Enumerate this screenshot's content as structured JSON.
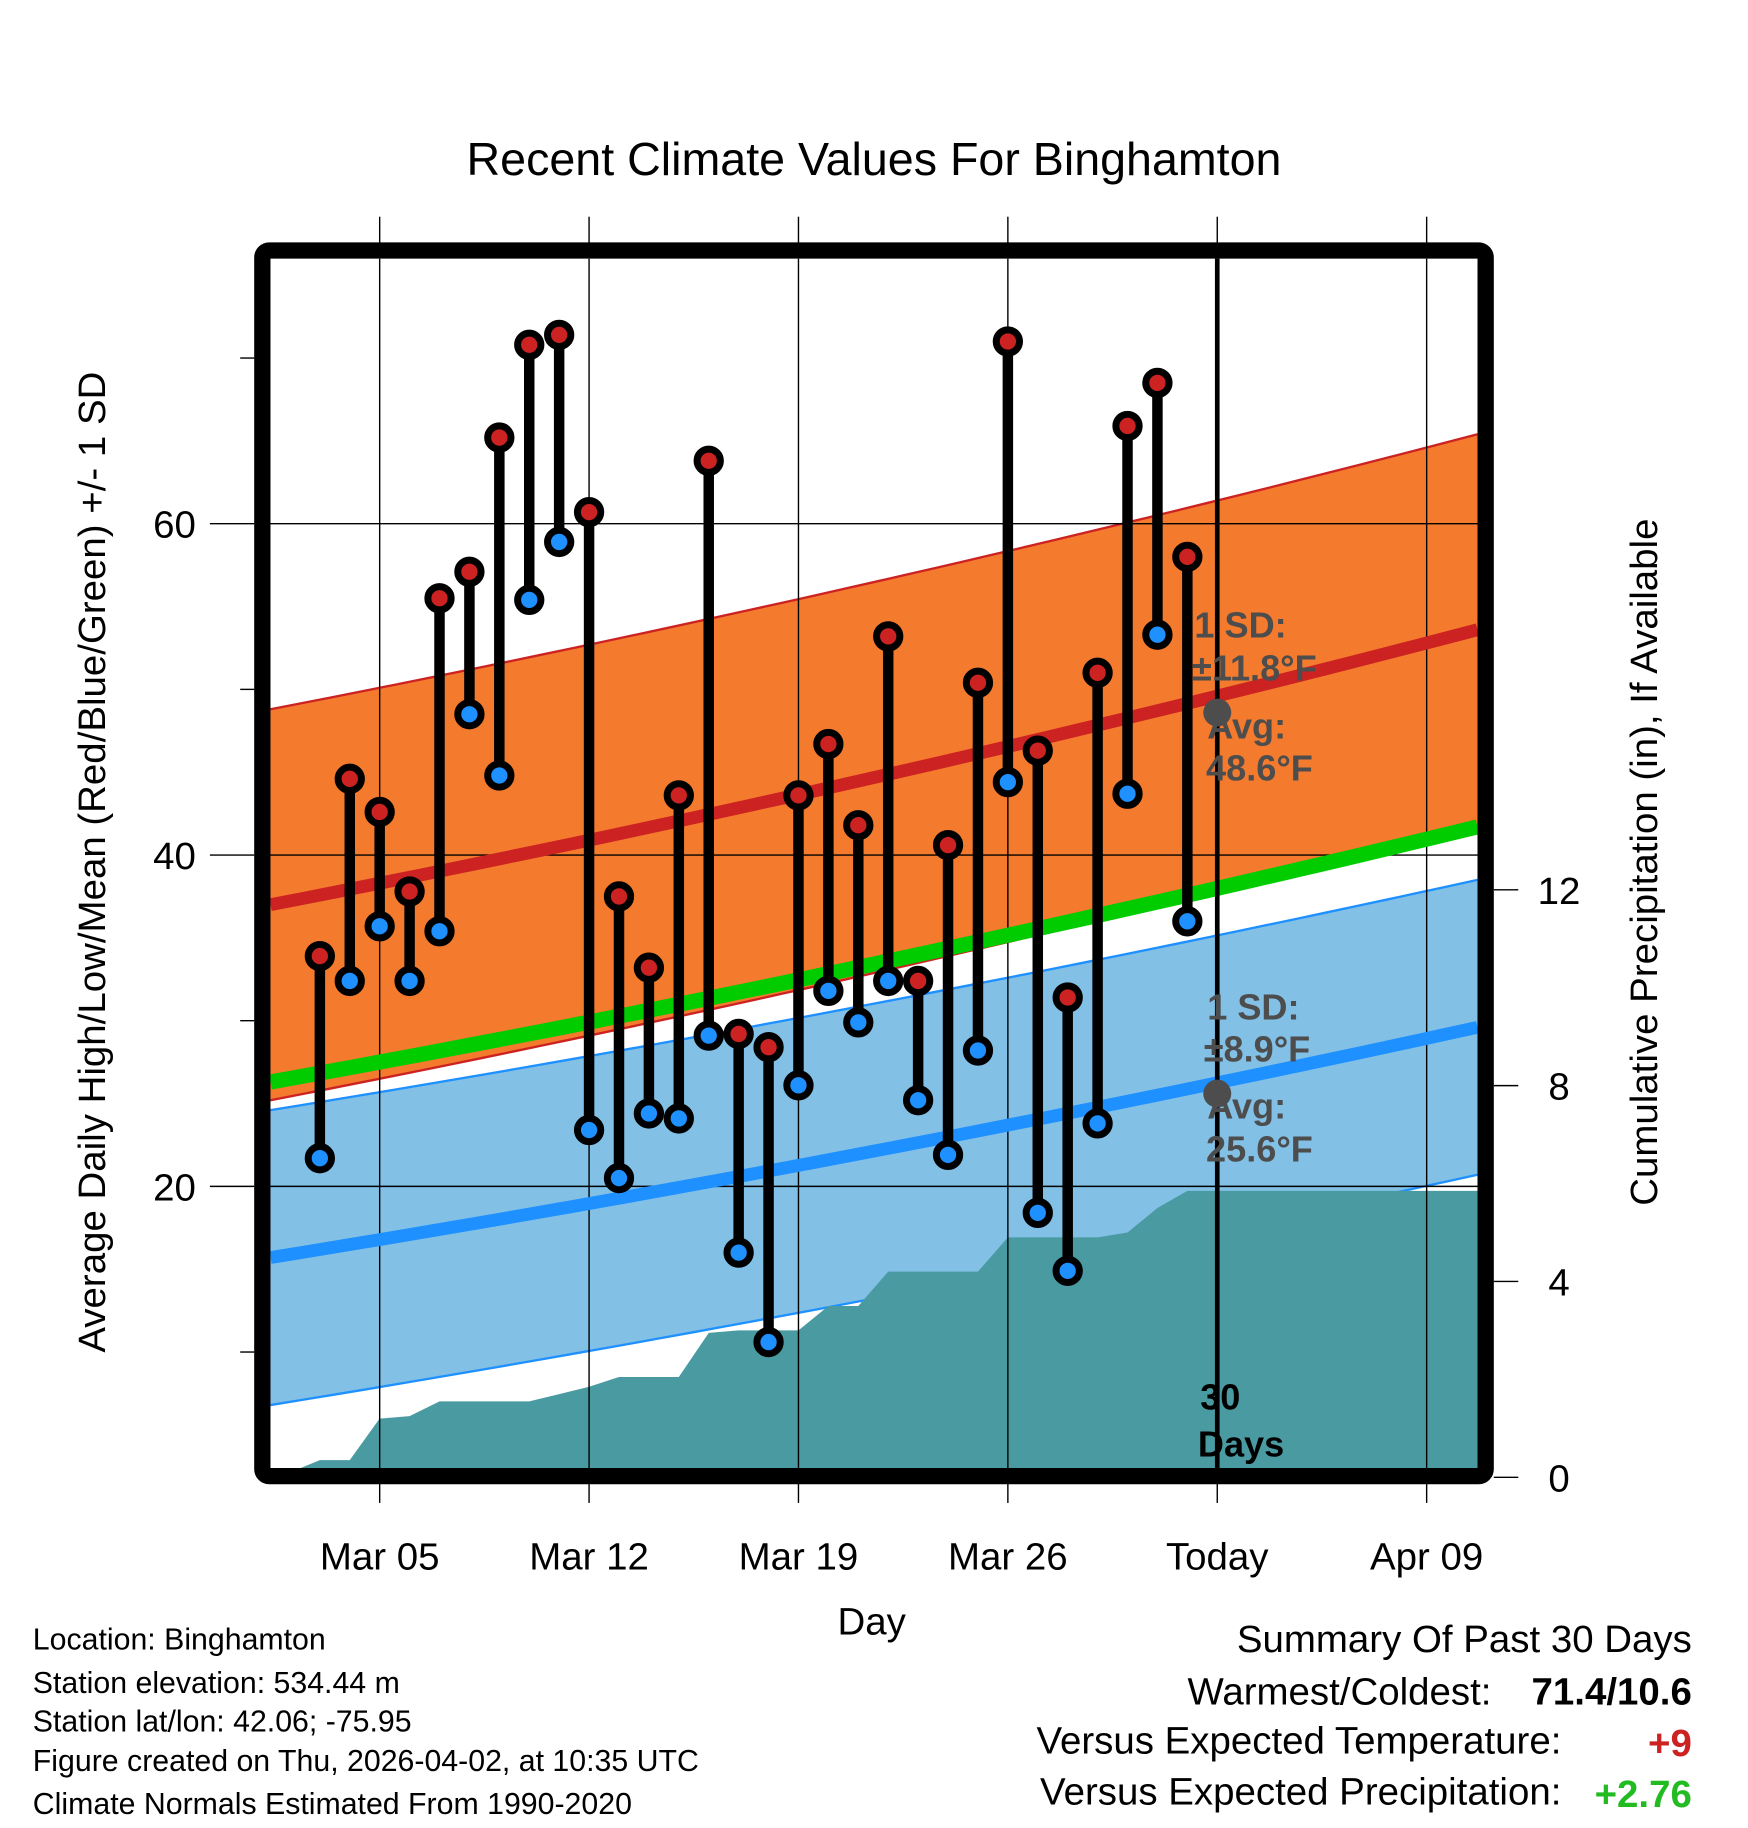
{
  "chart_data": {
    "type": "line",
    "title": "Recent Climate Values For Binghamton",
    "xlabel": "Day",
    "ylabel": "Average Daily High/Low/Mean (Red/Blue/Green) +/- 1 SD",
    "y2label": "Cumulative Precipitation (in), If Available",
    "ylim": [
      3,
      76
    ],
    "y2lim": [
      0,
      24.7
    ],
    "yticks": [
      20,
      40,
      60
    ],
    "yminor_ticks": [
      10,
      30,
      50,
      70
    ],
    "y2ticks": [
      0,
      4,
      8,
      12
    ],
    "xlim_days_from_mar1": [
      1.35,
      41.7
    ],
    "xticks": [
      {
        "label": "Mar 05",
        "day": 5
      },
      {
        "label": "Mar 12",
        "day": 12
      },
      {
        "label": "Mar 19",
        "day": 19
      },
      {
        "label": "Mar 26",
        "day": 26
      },
      {
        "label": "Today",
        "day": 33
      },
      {
        "label": "Apr 09",
        "day": 40
      }
    ],
    "grid": true,
    "colors": {
      "high": "#cc2222",
      "low": "#1e90ff",
      "mean": "#00cc00",
      "high_band": "#f47a2e",
      "low_band": "#82c0e6",
      "precip": "#4a9aa2",
      "annotation": "#4d4d4d"
    },
    "days": [
      "Mar 03",
      "Mar 04",
      "Mar 05",
      "Mar 06",
      "Mar 07",
      "Mar 08",
      "Mar 09",
      "Mar 10",
      "Mar 11",
      "Mar 12",
      "Mar 13",
      "Mar 14",
      "Mar 15",
      "Mar 16",
      "Mar 17",
      "Mar 18",
      "Mar 19",
      "Mar 20",
      "Mar 21",
      "Mar 22",
      "Mar 23",
      "Mar 24",
      "Mar 25",
      "Mar 26",
      "Mar 27",
      "Mar 28",
      "Mar 29",
      "Mar 30",
      "Mar 31",
      "Apr 01"
    ],
    "series": [
      {
        "name": "Daily High",
        "values": [
          33.9,
          44.6,
          42.6,
          37.8,
          55.5,
          57.1,
          65.2,
          70.8,
          71.4,
          60.7,
          37.5,
          33.2,
          43.6,
          63.8,
          29.2,
          28.4,
          43.6,
          46.7,
          41.8,
          53.2,
          32.4,
          40.6,
          50.4,
          71.0,
          46.3,
          31.4,
          51.0,
          65.9,
          68.5,
          58.0
        ]
      },
      {
        "name": "Daily Low",
        "values": [
          21.7,
          32.4,
          35.7,
          32.4,
          35.4,
          48.5,
          44.8,
          55.4,
          58.9,
          23.4,
          20.5,
          24.4,
          24.1,
          29.1,
          16.0,
          10.6,
          26.1,
          31.8,
          29.9,
          32.4,
          25.2,
          21.9,
          28.2,
          44.4,
          18.4,
          14.9,
          23.8,
          43.7,
          53.3,
          36.0
        ]
      }
    ],
    "normals": {
      "x_days": [
        1.35,
        41.7
      ],
      "avg_high": [
        37.0,
        53.6
      ],
      "avg_high_sd": 11.8,
      "avg_low": [
        15.7,
        29.6
      ],
      "avg_low_sd": 8.9,
      "avg_mean": [
        26.3,
        41.7
      ]
    },
    "precip": {
      "days": [
        1.35,
        2,
        3,
        4,
        5,
        6,
        7,
        8,
        9,
        10,
        11,
        12,
        13,
        14,
        15,
        16,
        17,
        18,
        19,
        20,
        21,
        22,
        23,
        24,
        25,
        26,
        27,
        28,
        29,
        30,
        31,
        32,
        41.7
      ],
      "values": [
        0,
        0.1,
        0.35,
        0.35,
        1.2,
        1.25,
        1.55,
        1.55,
        1.55,
        1.55,
        1.7,
        1.85,
        2.05,
        2.05,
        2.05,
        2.95,
        3.0,
        3.0,
        3.0,
        3.5,
        3.5,
        4.2,
        4.2,
        4.2,
        4.2,
        4.9,
        4.9,
        4.9,
        4.9,
        5.0,
        5.5,
        5.85,
        5.85
      ]
    },
    "annotations": {
      "high_sd_line1": "1 SD:",
      "high_sd_line2": "±11.8°F",
      "high_avg_line1": "Avg:",
      "high_avg_line2": "48.6°F",
      "low_sd_line1": "1 SD:",
      "low_sd_line2": "±8.9°F",
      "low_avg_line1": "Avg:",
      "low_avg_line2": "25.6°F",
      "today_high_avg": 48.6,
      "today_low_avg": 25.6,
      "days_line1": "30",
      "days_line2": "Days"
    }
  },
  "footer_left": {
    "location": "Location: Binghamton",
    "elevation": "Station elevation: 534.44 m",
    "latlon": "Station lat/lon: 42.06; -75.95",
    "created": "Figure created on Thu, 2026-04-02, at 10:35 UTC",
    "normals": "Climate Normals Estimated From 1990-2020"
  },
  "summary": {
    "title": "Summary Of Past 30 Days",
    "warmest_coldest_label": "Warmest/Coldest:",
    "warmest_coldest_value": "71.4/10.6",
    "temp_label": "Versus Expected Temperature:",
    "temp_value": "+9",
    "temp_color": "#cc2222",
    "precip_label": "Versus Expected Precipitation:",
    "precip_value": "+2.76",
    "precip_color": "#22bb22"
  }
}
